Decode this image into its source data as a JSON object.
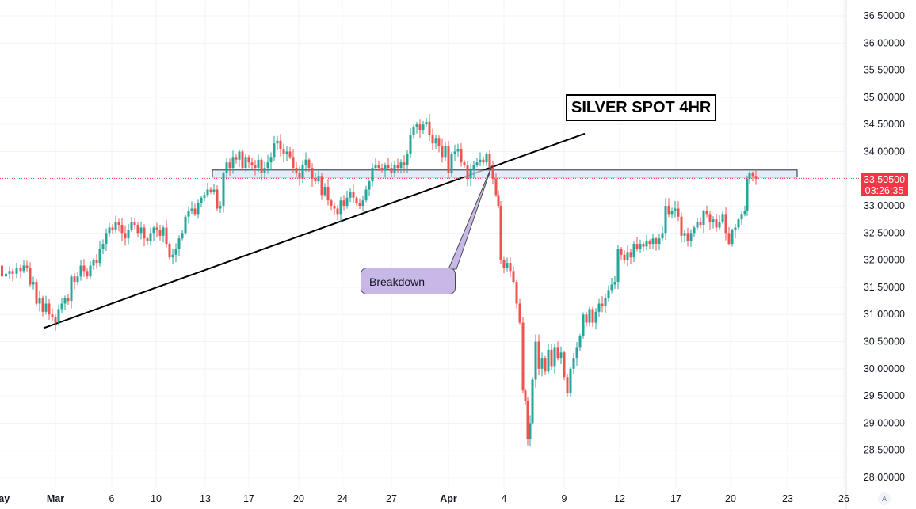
{
  "chart_data": {
    "type": "candlestick",
    "title": "SILVER SPOT 4HR",
    "ylim": [
      27.9,
      36.7
    ],
    "y_ticks": [
      "36.50000",
      "36.00000",
      "35.50000",
      "35.00000",
      "34.50000",
      "34.00000",
      "33.50000",
      "33.00000",
      "32.50000",
      "32.00000",
      "31.50000",
      "31.00000",
      "30.50000",
      "30.00000",
      "29.50000",
      "29.00000",
      "28.50000",
      "28.00000"
    ],
    "x_ticks": [
      {
        "label": "Mar",
        "bold": true
      },
      {
        "label": "6",
        "bold": false
      },
      {
        "label": "10",
        "bold": false
      },
      {
        "label": "13",
        "bold": false
      },
      {
        "label": "17",
        "bold": false
      },
      {
        "label": "20",
        "bold": false
      },
      {
        "label": "24",
        "bold": false
      },
      {
        "label": "27",
        "bold": false
      },
      {
        "label": "Apr",
        "bold": true
      },
      {
        "label": "4",
        "bold": false
      },
      {
        "label": "9",
        "bold": false
      },
      {
        "label": "12",
        "bold": false
      },
      {
        "label": "17",
        "bold": false
      },
      {
        "label": "20",
        "bold": false
      },
      {
        "label": "23",
        "bold": false
      },
      {
        "label": "26",
        "bold": false
      },
      {
        "label": "May",
        "bold": true
      }
    ],
    "colors": {
      "up": "#26a69a",
      "down": "#ef5350",
      "grid": "#f0f3fa",
      "zone_fill": "#dce6f7",
      "zone_border": "#1e2a3a",
      "callout_fill": "#c8b8e8",
      "price_badge": "#f23645"
    },
    "candle_path": [
      [
        0,
        31.9
      ],
      [
        5,
        31.7
      ],
      [
        10,
        31.75
      ],
      [
        14,
        31.8
      ],
      [
        18,
        31.75
      ],
      [
        24,
        31.85
      ],
      [
        28,
        31.8
      ],
      [
        32,
        31.9
      ],
      [
        36,
        31.85
      ],
      [
        40,
        31.55
      ],
      [
        44,
        31.6
      ],
      [
        48,
        31.2
      ],
      [
        52,
        31.3
      ],
      [
        56,
        31.05
      ],
      [
        60,
        31.2
      ],
      [
        64,
        31.0
      ],
      [
        68,
        30.95
      ],
      [
        72,
        30.85
      ],
      [
        76,
        31.1
      ],
      [
        80,
        31.2
      ],
      [
        84,
        31.3
      ],
      [
        88,
        31.25
      ],
      [
        92,
        31.7
      ],
      [
        96,
        31.6
      ],
      [
        100,
        31.7
      ],
      [
        104,
        31.9
      ],
      [
        108,
        31.8
      ],
      [
        112,
        31.7
      ],
      [
        116,
        31.9
      ],
      [
        120,
        32.0
      ],
      [
        124,
        31.95
      ],
      [
        128,
        32.2
      ],
      [
        132,
        32.3
      ],
      [
        136,
        32.5
      ],
      [
        140,
        32.6
      ],
      [
        144,
        32.55
      ],
      [
        148,
        32.7
      ],
      [
        152,
        32.65
      ],
      [
        156,
        32.5
      ],
      [
        160,
        32.4
      ],
      [
        164,
        32.55
      ],
      [
        168,
        32.7
      ],
      [
        172,
        32.65
      ],
      [
        176,
        32.5
      ],
      [
        180,
        32.6
      ],
      [
        184,
        32.4
      ],
      [
        188,
        32.35
      ],
      [
        192,
        32.5
      ],
      [
        196,
        32.6
      ],
      [
        200,
        32.55
      ],
      [
        204,
        32.45
      ],
      [
        208,
        32.6
      ],
      [
        212,
        32.3
      ],
      [
        216,
        32.05
      ],
      [
        220,
        32.1
      ],
      [
        224,
        32.2
      ],
      [
        228,
        32.4
      ],
      [
        232,
        32.5
      ],
      [
        236,
        32.8
      ],
      [
        240,
        32.9
      ],
      [
        244,
        32.95
      ],
      [
        248,
        32.85
      ],
      [
        252,
        33.05
      ],
      [
        256,
        33.15
      ],
      [
        260,
        33.2
      ],
      [
        264,
        33.3
      ],
      [
        268,
        33.25
      ],
      [
        272,
        33.3
      ],
      [
        276,
        32.95
      ],
      [
        280,
        33.0
      ],
      [
        284,
        33.6
      ],
      [
        288,
        33.8
      ],
      [
        292,
        33.7
      ],
      [
        296,
        33.9
      ],
      [
        300,
        33.85
      ],
      [
        304,
        34.0
      ],
      [
        308,
        33.7
      ],
      [
        312,
        33.9
      ],
      [
        316,
        33.8
      ],
      [
        320,
        33.75
      ],
      [
        324,
        33.7
      ],
      [
        328,
        33.85
      ],
      [
        332,
        33.6
      ],
      [
        336,
        33.7
      ],
      [
        340,
        33.8
      ],
      [
        344,
        33.9
      ],
      [
        348,
        34.15
      ],
      [
        352,
        34.2
      ],
      [
        356,
        34.05
      ],
      [
        360,
        33.95
      ],
      [
        364,
        34.0
      ],
      [
        368,
        33.9
      ],
      [
        372,
        33.7
      ],
      [
        376,
        33.6
      ],
      [
        380,
        33.5
      ],
      [
        384,
        33.75
      ],
      [
        388,
        33.85
      ],
      [
        392,
        33.7
      ],
      [
        396,
        33.5
      ],
      [
        400,
        33.45
      ],
      [
        404,
        33.55
      ],
      [
        408,
        33.2
      ],
      [
        412,
        33.35
      ],
      [
        416,
        33.1
      ],
      [
        420,
        33.0
      ],
      [
        424,
        32.95
      ],
      [
        428,
        32.85
      ],
      [
        432,
        33.1
      ],
      [
        436,
        33.0
      ],
      [
        440,
        33.15
      ],
      [
        444,
        33.25
      ],
      [
        448,
        33.15
      ],
      [
        452,
        33.05
      ],
      [
        456,
        33.0
      ],
      [
        460,
        33.1
      ],
      [
        464,
        33.3
      ],
      [
        468,
        33.45
      ],
      [
        472,
        33.7
      ],
      [
        476,
        33.75
      ],
      [
        480,
        33.7
      ],
      [
        484,
        33.65
      ],
      [
        488,
        33.75
      ],
      [
        492,
        33.7
      ],
      [
        496,
        33.6
      ],
      [
        500,
        33.75
      ],
      [
        504,
        33.7
      ],
      [
        508,
        33.8
      ],
      [
        512,
        33.75
      ],
      [
        516,
        33.95
      ],
      [
        520,
        34.3
      ],
      [
        524,
        34.45
      ],
      [
        528,
        34.5
      ],
      [
        532,
        34.4
      ],
      [
        536,
        34.5
      ],
      [
        540,
        34.55
      ],
      [
        544,
        34.3
      ],
      [
        548,
        34.15
      ],
      [
        552,
        34.25
      ],
      [
        556,
        34.1
      ],
      [
        560,
        33.9
      ],
      [
        564,
        34.1
      ],
      [
        568,
        33.6
      ],
      [
        572,
        33.95
      ],
      [
        576,
        34.0
      ],
      [
        580,
        34.05
      ],
      [
        584,
        33.8
      ],
      [
        588,
        33.75
      ],
      [
        592,
        33.5
      ],
      [
        596,
        33.65
      ],
      [
        600,
        33.75
      ],
      [
        604,
        33.8
      ],
      [
        608,
        33.85
      ],
      [
        612,
        33.8
      ],
      [
        616,
        33.95
      ],
      [
        620,
        33.7
      ],
      [
        624,
        33.5
      ],
      [
        628,
        33.2
      ],
      [
        630,
        33.0
      ],
      [
        634,
        32.0
      ],
      [
        638,
        31.85
      ],
      [
        642,
        31.95
      ],
      [
        646,
        31.8
      ],
      [
        650,
        31.6
      ],
      [
        654,
        31.2
      ],
      [
        658,
        30.85
      ],
      [
        662,
        29.6
      ],
      [
        664,
        29.4
      ],
      [
        668,
        28.7
      ],
      [
        670,
        29.0
      ],
      [
        674,
        29.8
      ],
      [
        678,
        30.5
      ],
      [
        682,
        30.0
      ],
      [
        686,
        30.2
      ],
      [
        690,
        29.95
      ],
      [
        694,
        30.35
      ],
      [
        698,
        30.05
      ],
      [
        702,
        30.4
      ],
      [
        706,
        30.2
      ],
      [
        710,
        30.3
      ],
      [
        714,
        29.85
      ],
      [
        718,
        29.55
      ],
      [
        722,
        30.0
      ],
      [
        726,
        30.2
      ],
      [
        730,
        30.4
      ],
      [
        734,
        30.6
      ],
      [
        738,
        31.0
      ],
      [
        742,
        30.85
      ],
      [
        746,
        31.1
      ],
      [
        750,
        30.85
      ],
      [
        754,
        31.05
      ],
      [
        758,
        31.2
      ],
      [
        762,
        31.15
      ],
      [
        766,
        31.3
      ],
      [
        770,
        31.45
      ],
      [
        774,
        31.55
      ],
      [
        778,
        31.6
      ],
      [
        782,
        32.2
      ],
      [
        786,
        32.1
      ],
      [
        790,
        32.0
      ],
      [
        794,
        32.15
      ],
      [
        798,
        32.05
      ],
      [
        802,
        32.3
      ],
      [
        806,
        32.2
      ],
      [
        810,
        32.3
      ],
      [
        814,
        32.25
      ],
      [
        818,
        32.35
      ],
      [
        822,
        32.3
      ],
      [
        826,
        32.4
      ],
      [
        830,
        32.3
      ],
      [
        834,
        32.4
      ],
      [
        838,
        32.5
      ],
      [
        842,
        33.0
      ],
      [
        846,
        32.85
      ],
      [
        850,
        32.9
      ],
      [
        854,
        32.95
      ],
      [
        858,
        32.8
      ],
      [
        862,
        32.45
      ],
      [
        866,
        32.5
      ],
      [
        870,
        32.35
      ],
      [
        874,
        32.5
      ],
      [
        878,
        32.6
      ],
      [
        882,
        32.7
      ],
      [
        886,
        32.65
      ],
      [
        890,
        32.9
      ],
      [
        894,
        32.85
      ],
      [
        898,
        32.7
      ],
      [
        902,
        32.75
      ],
      [
        906,
        32.6
      ],
      [
        910,
        32.7
      ],
      [
        914,
        32.85
      ],
      [
        918,
        32.5
      ],
      [
        922,
        32.3
      ],
      [
        926,
        32.55
      ],
      [
        930,
        32.6
      ],
      [
        934,
        32.75
      ],
      [
        938,
        32.85
      ],
      [
        942,
        32.9
      ],
      [
        944,
        33.5
      ],
      [
        948,
        33.6
      ],
      [
        952,
        33.55
      ],
      [
        956,
        33.5
      ]
    ],
    "trendline": {
      "from": [
        55,
        30.75
      ],
      "to": [
        738,
        34.33
      ]
    },
    "resistance_zone": {
      "x_from": 268,
      "x_to": 1006,
      "y_low": 33.53,
      "y_high": 33.66
    },
    "current_price": {
      "value": "33.50500",
      "countdown": "03:26:35",
      "y": 33.505
    },
    "annotation": {
      "text": "Breakdown"
    },
    "auto_label": "A"
  }
}
